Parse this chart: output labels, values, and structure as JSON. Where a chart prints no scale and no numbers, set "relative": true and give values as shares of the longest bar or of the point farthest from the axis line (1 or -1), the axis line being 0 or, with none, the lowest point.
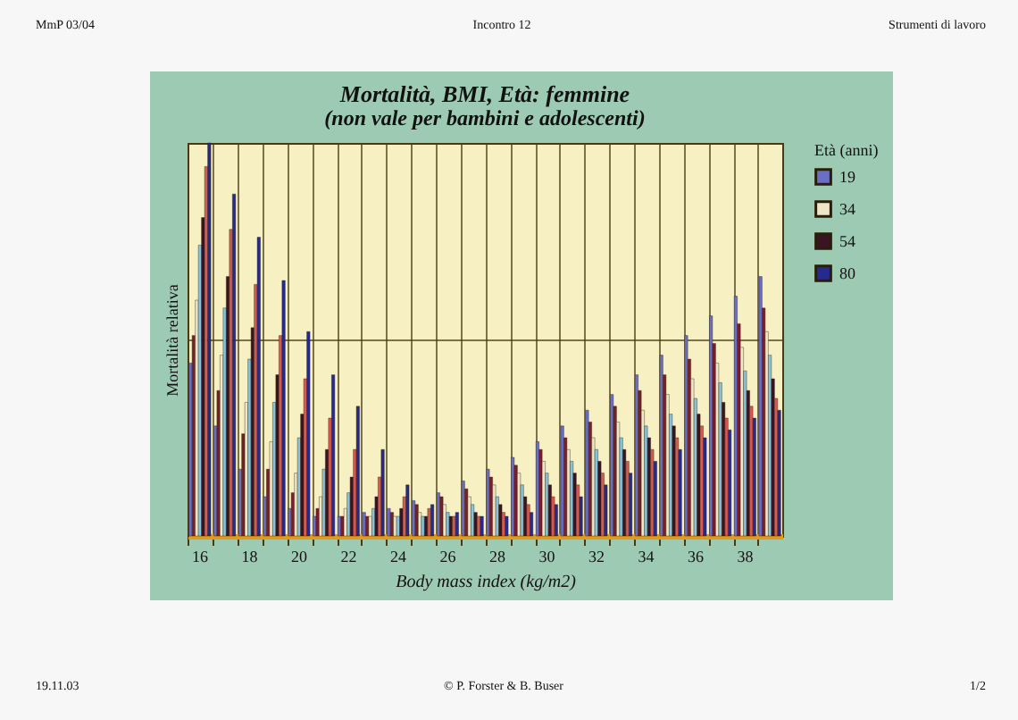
{
  "chart_data": {
    "type": "bar",
    "title": "Mortalità, BMI, Età: femmine",
    "subtitle": "(non vale per bambini e adolescenti)",
    "xlabel": "Body mass index (kg/m2)",
    "ylabel": "Mortalità relativa",
    "legend_title": "Età (anni)",
    "annotations": [
      "MmP 03/04",
      "Incontro 12",
      "Strumenti di lavoro",
      "19.11.03",
      "© P. Forster & B. Buser",
      "1/2"
    ],
    "relative": true,
    "grid": true,
    "legend": "right",
    "categories": [
      "16",
      null,
      "18",
      null,
      "20",
      null,
      "22",
      null,
      "24",
      null,
      "26",
      null,
      "28",
      null,
      "30",
      null,
      "32",
      null,
      "34",
      null,
      "36",
      null,
      "38",
      null
    ],
    "series": [
      {
        "name": "19",
        "color": "#6b6fc4",
        "values": [
          0.44,
          0.28,
          0.17,
          0.1,
          0.07,
          0.05,
          0.05,
          0.06,
          0.07,
          0.09,
          0.11,
          0.14,
          0.17,
          0.2,
          0.24,
          0.28,
          0.32,
          0.36,
          0.41,
          0.46,
          0.51,
          0.56,
          0.61,
          0.66
        ]
      },
      {
        "color": "#7a1e2c",
        "values": [
          0.51,
          0.37,
          0.26,
          0.17,
          0.11,
          0.07,
          0.05,
          0.05,
          0.06,
          0.08,
          0.1,
          0.12,
          0.15,
          0.18,
          0.22,
          0.25,
          0.29,
          0.33,
          0.37,
          0.41,
          0.45,
          0.49,
          0.54,
          0.58
        ]
      },
      {
        "name": "34",
        "color": "#efe6c8",
        "values": [
          0.6,
          0.46,
          0.34,
          0.24,
          0.16,
          0.1,
          0.07,
          0.05,
          0.05,
          0.06,
          0.08,
          0.1,
          0.13,
          0.16,
          0.19,
          0.22,
          0.25,
          0.29,
          0.32,
          0.36,
          0.4,
          0.44,
          0.48,
          0.52
        ]
      },
      {
        "color": "#86c3dc",
        "values": [
          0.74,
          0.58,
          0.45,
          0.34,
          0.25,
          0.17,
          0.11,
          0.07,
          0.05,
          0.05,
          0.06,
          0.08,
          0.1,
          0.13,
          0.16,
          0.19,
          0.22,
          0.25,
          0.28,
          0.31,
          0.35,
          0.39,
          0.42,
          0.46
        ]
      },
      {
        "name": "54",
        "color": "#3b1424",
        "values": [
          0.81,
          0.66,
          0.53,
          0.41,
          0.31,
          0.22,
          0.15,
          0.1,
          0.07,
          0.05,
          0.05,
          0.06,
          0.08,
          0.1,
          0.13,
          0.16,
          0.19,
          0.22,
          0.25,
          0.28,
          0.31,
          0.34,
          0.37,
          0.4
        ]
      },
      {
        "color": "#d65a52",
        "values": [
          0.94,
          0.78,
          0.64,
          0.51,
          0.4,
          0.3,
          0.22,
          0.15,
          0.1,
          0.07,
          0.05,
          0.05,
          0.06,
          0.08,
          0.1,
          0.13,
          0.16,
          0.19,
          0.22,
          0.25,
          0.28,
          0.3,
          0.33,
          0.35
        ]
      },
      {
        "name": "80",
        "color": "#262a8e",
        "values": [
          1.0,
          0.87,
          0.76,
          0.65,
          0.52,
          0.41,
          0.33,
          0.22,
          0.13,
          0.08,
          0.06,
          0.05,
          0.05,
          0.06,
          0.08,
          0.1,
          0.13,
          0.16,
          0.19,
          0.22,
          0.25,
          0.27,
          0.3,
          0.32
        ]
      }
    ]
  }
}
